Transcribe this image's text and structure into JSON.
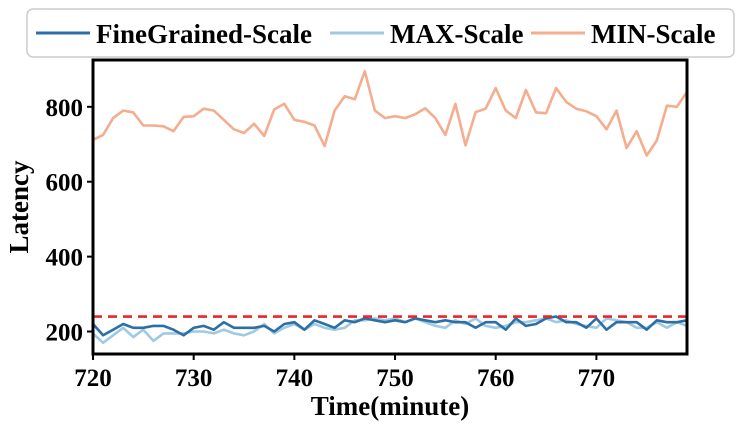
{
  "chart_data": {
    "type": "line",
    "title": "",
    "xlabel": "Time(minute)",
    "ylabel": "Latency",
    "xlim": [
      720,
      779
    ],
    "ylim": [
      140,
      925
    ],
    "xticks": [
      720,
      730,
      740,
      750,
      760,
      770
    ],
    "yticks": [
      200,
      400,
      600,
      800
    ],
    "legend_position": "top",
    "x": [
      720,
      721,
      722,
      723,
      724,
      725,
      726,
      727,
      728,
      729,
      730,
      731,
      732,
      733,
      734,
      735,
      736,
      737,
      738,
      739,
      740,
      741,
      742,
      743,
      744,
      745,
      746,
      747,
      748,
      749,
      750,
      751,
      752,
      753,
      754,
      755,
      756,
      757,
      758,
      759,
      760,
      761,
      762,
      763,
      764,
      765,
      766,
      767,
      768,
      769,
      770,
      771,
      772,
      773,
      774,
      775,
      776,
      777,
      778,
      779
    ],
    "series": [
      {
        "name": "FineGrained-Scale",
        "color": "#2c6fa7",
        "values": [
          220,
          190,
          205,
          220,
          210,
          210,
          215,
          215,
          205,
          190,
          210,
          215,
          205,
          225,
          210,
          210,
          210,
          215,
          200,
          220,
          225,
          205,
          230,
          220,
          210,
          230,
          225,
          235,
          230,
          225,
          230,
          225,
          235,
          230,
          225,
          230,
          225,
          225,
          210,
          225,
          225,
          205,
          235,
          215,
          220,
          235,
          240,
          225,
          225,
          210,
          235,
          205,
          225,
          225,
          225,
          205,
          230,
          225,
          225,
          230
        ]
      },
      {
        "name": "MAX-Scale",
        "color": "#9fcae1",
        "values": [
          195,
          170,
          190,
          210,
          185,
          205,
          175,
          195,
          195,
          195,
          200,
          200,
          195,
          205,
          195,
          190,
          200,
          220,
          195,
          210,
          220,
          205,
          220,
          210,
          205,
          210,
          230,
          230,
          235,
          230,
          235,
          225,
          235,
          225,
          215,
          210,
          230,
          220,
          235,
          215,
          210,
          215,
          225,
          225,
          230,
          235,
          225,
          230,
          220,
          215,
          210,
          235,
          230,
          225,
          210,
          210,
          225,
          210,
          225,
          215
        ]
      },
      {
        "name": "MIN-Scale",
        "color": "#f4ad8e",
        "values": [
          712,
          725,
          770,
          790,
          785,
          750,
          750,
          748,
          735,
          773,
          775,
          795,
          790,
          765,
          740,
          730,
          755,
          722,
          793,
          808,
          765,
          760,
          750,
          695,
          790,
          828,
          820,
          895,
          790,
          770,
          775,
          770,
          780,
          796,
          770,
          725,
          808,
          697,
          786,
          795,
          850,
          790,
          770,
          845,
          785,
          783,
          850,
          813,
          795,
          788,
          775,
          740,
          790,
          690,
          735,
          670,
          710,
          803,
          800,
          840
        ]
      }
    ],
    "reference_line": {
      "y": 240,
      "color": "#e8262b",
      "style": "dashed",
      "label": ""
    }
  }
}
